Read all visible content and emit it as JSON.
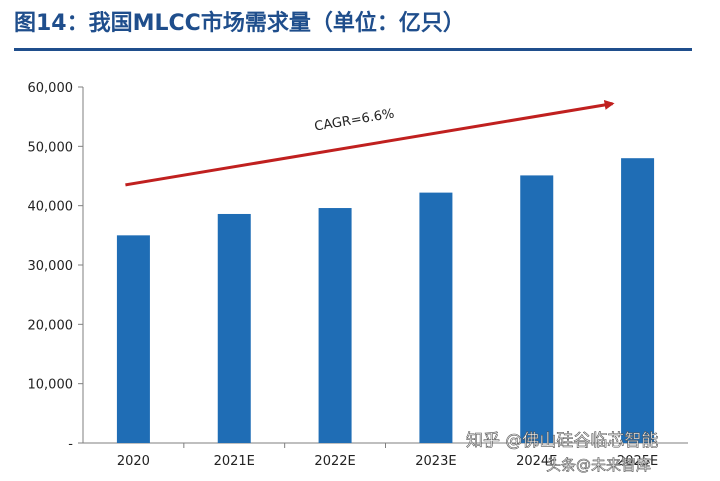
{
  "title": "图14：我国MLCC市场需求量（单位：亿只）",
  "chart_data": {
    "type": "bar",
    "title": "图14：我国MLCC市场需求量（单位：亿只）",
    "xlabel": "",
    "ylabel": "",
    "categories": [
      "2020",
      "2021E",
      "2022E",
      "2023E",
      "2024E",
      "2025E"
    ],
    "values": [
      35000,
      38600,
      39600,
      42200,
      45100,
      48000
    ],
    "ylim": [
      0,
      60000
    ],
    "yticks": [
      0,
      10000,
      20000,
      30000,
      40000,
      50000,
      60000
    ],
    "ytick_labels": [
      "-",
      "10,000",
      "20,000",
      "30,000",
      "40,000",
      "50,000",
      "60,000"
    ],
    "bar_color": "#1f6db5",
    "grid": false,
    "annotation": {
      "text": "CAGR=6.6%",
      "arrow_color": "#c0201f"
    }
  },
  "watermark": {
    "line1": "知乎 @佛山硅谷临芯智能",
    "line2": "头条@未来智库"
  }
}
